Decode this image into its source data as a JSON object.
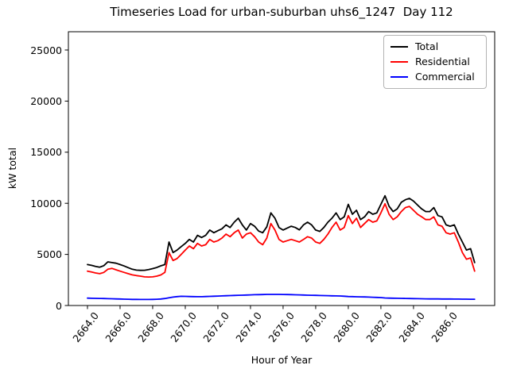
{
  "chart_data": {
    "type": "line",
    "title": "Timeseries Load for urban-suburban uhs6_1247  Day 112",
    "xlabel": "Hour of Year",
    "ylabel": "kW total",
    "grid": false,
    "legend_position": "upper right",
    "xlim": [
      2662.83,
      2688.98
    ],
    "ylim": [
      0,
      26786
    ],
    "x_start": 2664.0,
    "x_step": 0.25,
    "x_ticks": {
      "values": [
        2664,
        2666,
        2668,
        2670,
        2672,
        2674,
        2676,
        2678,
        2680,
        2682,
        2684,
        2686
      ],
      "labels": [
        "2664.0",
        "2666.0",
        "2668.0",
        "2670.0",
        "2672.0",
        "2674.0",
        "2676.0",
        "2678.0",
        "2680.0",
        "2682.0",
        "2684.0",
        "2686.0"
      ]
    },
    "y_ticks": {
      "values": [
        0,
        5000,
        10000,
        15000,
        20000,
        25000
      ],
      "labels": [
        "0",
        "5000",
        "10000",
        "15000",
        "20000",
        "25000"
      ]
    },
    "series": [
      {
        "name": "Total",
        "color": "#000000",
        "values": [
          4010,
          3930,
          3830,
          3750,
          3900,
          4270,
          4200,
          4140,
          4010,
          3870,
          3700,
          3550,
          3460,
          3440,
          3450,
          3520,
          3610,
          3720,
          3880,
          4010,
          6210,
          5180,
          5430,
          5760,
          6080,
          6470,
          6210,
          6860,
          6650,
          6860,
          7380,
          7120,
          7320,
          7510,
          7890,
          7630,
          8150,
          8540,
          7890,
          7380,
          8020,
          7760,
          7280,
          7120,
          7700,
          9060,
          8540,
          7630,
          7380,
          7580,
          7760,
          7630,
          7400,
          7890,
          8150,
          7890,
          7380,
          7250,
          7630,
          8150,
          8540,
          9060,
          8410,
          8670,
          9900,
          8930,
          9320,
          8410,
          8670,
          9190,
          8930,
          9060,
          9900,
          10740,
          9710,
          9190,
          9450,
          10100,
          10350,
          10480,
          10220,
          9830,
          9450,
          9190,
          9190,
          9580,
          8800,
          8670,
          7890,
          7760,
          7890,
          6990,
          6210,
          5430,
          5560,
          4200
        ]
      },
      {
        "name": "Residential",
        "color": "#ff0000",
        "values": [
          3360,
          3280,
          3180,
          3110,
          3240,
          3550,
          3630,
          3490,
          3360,
          3240,
          3110,
          3000,
          2930,
          2870,
          2800,
          2790,
          2800,
          2870,
          2990,
          3240,
          5180,
          4400,
          4600,
          5000,
          5430,
          5820,
          5560,
          6080,
          5820,
          5950,
          6470,
          6210,
          6340,
          6600,
          6990,
          6730,
          7120,
          7380,
          6600,
          6990,
          7120,
          6730,
          6210,
          5950,
          6600,
          8020,
          7380,
          6470,
          6210,
          6340,
          6470,
          6340,
          6210,
          6470,
          6730,
          6600,
          6210,
          6080,
          6470,
          6990,
          7630,
          8150,
          7380,
          7630,
          8800,
          8020,
          8540,
          7630,
          8020,
          8410,
          8150,
          8280,
          9060,
          9960,
          8930,
          8410,
          8670,
          9190,
          9580,
          9700,
          9320,
          8930,
          8670,
          8410,
          8410,
          8670,
          7890,
          7760,
          7120,
          6990,
          7120,
          6210,
          5180,
          4530,
          4660,
          3360
        ]
      },
      {
        "name": "Commercial",
        "color": "#0000ff",
        "values": [
          720,
          710,
          700,
          690,
          680,
          670,
          660,
          645,
          635,
          620,
          610,
          600,
          595,
          590,
          590,
          590,
          600,
          615,
          640,
          680,
          750,
          820,
          870,
          900,
          890,
          880,
          870,
          865,
          865,
          875,
          890,
          905,
          925,
          940,
          955,
          970,
          985,
          1000,
          1010,
          1025,
          1040,
          1055,
          1065,
          1075,
          1085,
          1090,
          1090,
          1085,
          1080,
          1070,
          1060,
          1050,
          1040,
          1025,
          1010,
          1000,
          990,
          980,
          970,
          960,
          950,
          940,
          930,
          905,
          880,
          870,
          855,
          845,
          835,
          820,
          805,
          790,
          775,
          740,
          725,
          715,
          705,
          695,
          690,
          680,
          672,
          665,
          658,
          652,
          648,
          645,
          642,
          640,
          637,
          634,
          631,
          628,
          625,
          621,
          617,
          612
        ]
      }
    ]
  }
}
